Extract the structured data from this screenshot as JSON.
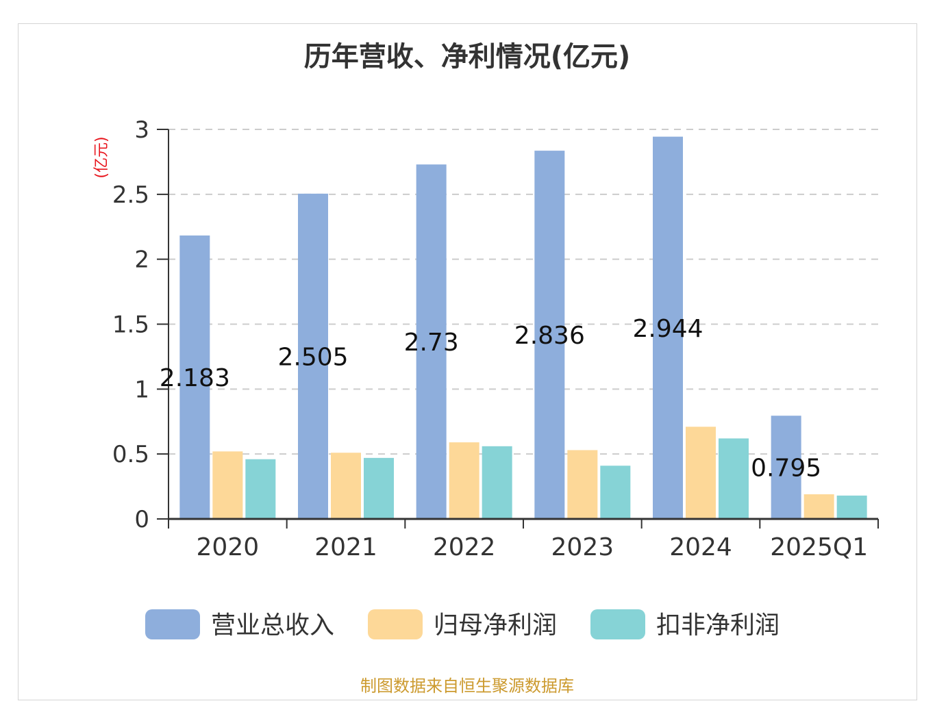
{
  "chart_data": {
    "type": "bar",
    "title": "历年营收、净利情况(亿元)",
    "ylabel": "(亿元)",
    "xlabel": "",
    "ylim": [
      0,
      3
    ],
    "yticks": [
      0,
      0.5,
      1,
      1.5,
      2,
      2.5,
      3
    ],
    "ytick_labels": [
      "0",
      "0.5",
      "1",
      "1.5",
      "2",
      "2.5",
      "3"
    ],
    "categories": [
      "2020",
      "2021",
      "2022",
      "2023",
      "2024",
      "2025Q1"
    ],
    "grid": true,
    "legend_position": "bottom",
    "series": [
      {
        "name": "营业总收入",
        "color": "#8eaedc",
        "values": [
          2.183,
          2.505,
          2.73,
          2.836,
          2.944,
          0.795
        ],
        "data_labels": [
          "2.183",
          "2.505",
          "2.73",
          "2.836",
          "2.944",
          "0.795"
        ]
      },
      {
        "name": "归母净利润",
        "color": "#fdd898",
        "values": [
          0.52,
          0.51,
          0.59,
          0.53,
          0.71,
          0.19
        ]
      },
      {
        "name": "扣非净利润",
        "color": "#86d3d6",
        "values": [
          0.46,
          0.47,
          0.56,
          0.41,
          0.62,
          0.18
        ]
      }
    ],
    "source_note": "制图数据来自恒生聚源数据库"
  }
}
